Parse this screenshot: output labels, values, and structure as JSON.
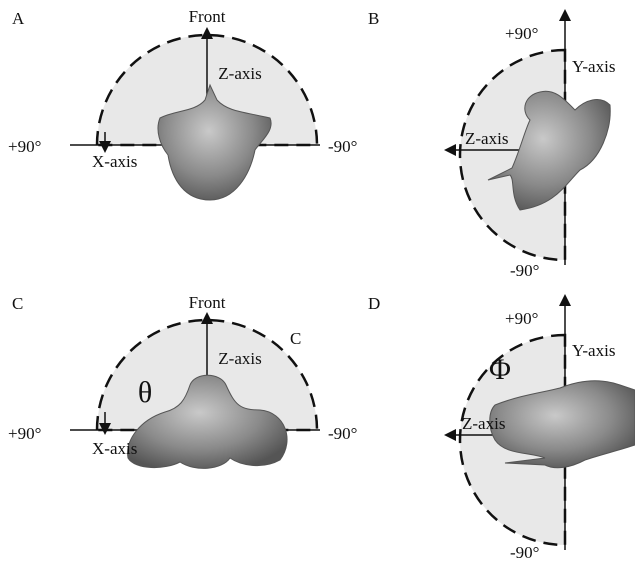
{
  "panels": [
    {
      "label": "A",
      "front": "Front",
      "z_axis": "Z-axis",
      "plus": "+90°",
      "x_axis": "X-axis",
      "minus": "-90°"
    },
    {
      "label": "B",
      "plus": "+90°",
      "y_axis": "Y-axis",
      "z_axis": "Z-axis",
      "minus": "-90°"
    },
    {
      "label": "C",
      "front": "Front",
      "z_axis": "Z-axis",
      "arc_label": "C",
      "angle": "θ",
      "plus": "+90°",
      "x_axis": "X-axis",
      "minus": "-90°"
    },
    {
      "label": "D",
      "plus": "+90°",
      "y_axis": "Y-axis",
      "angle": "Φ",
      "z_axis": "Z-axis",
      "minus": "-90°"
    }
  ]
}
